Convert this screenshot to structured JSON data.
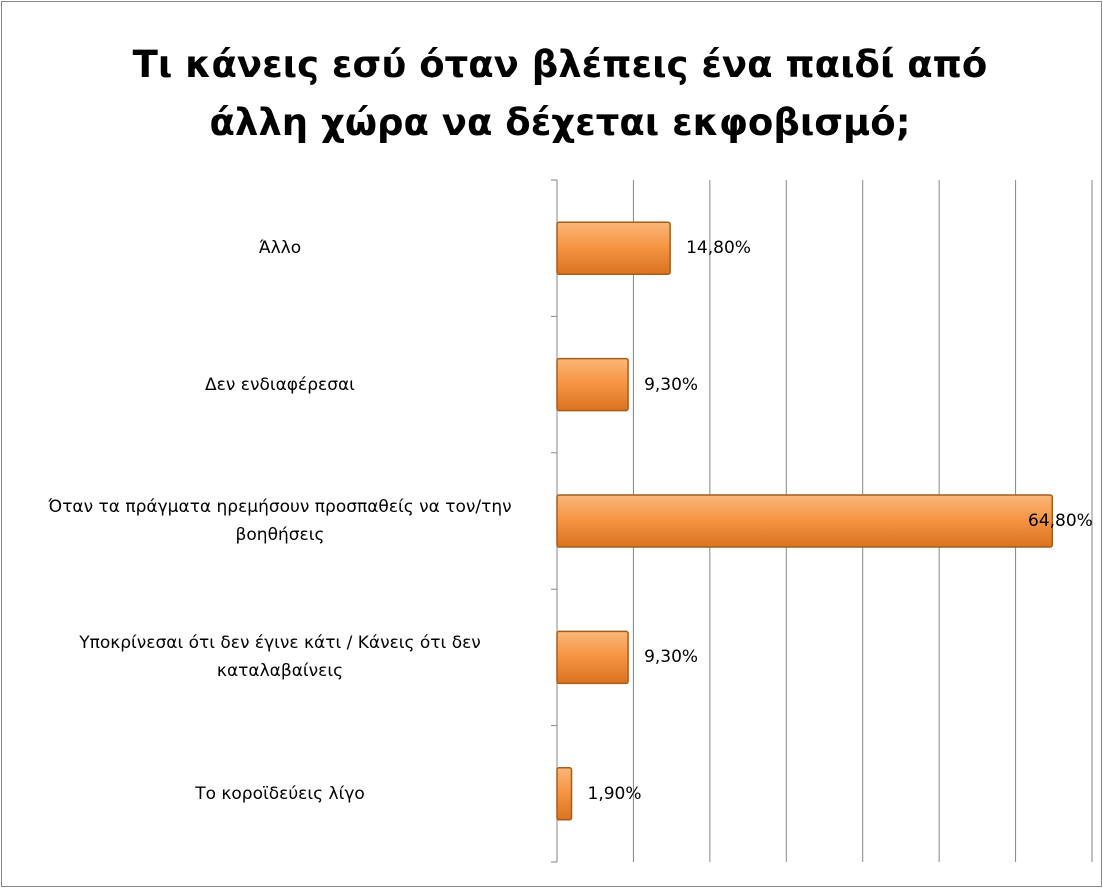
{
  "chart_data": {
    "type": "bar",
    "orientation": "horizontal",
    "title": "Τι κάνεις εσύ όταν βλέπεις ένα παιδί από άλλη χώρα να δέχεται εκφοβισμό;",
    "categories": [
      "Άλλο",
      "Δεν ενδιαφέρεσαι",
      "Όταν τα πράγματα ηρεμήσουν προσπαθείς να τον/την βοηθήσεις",
      "Υποκρίνεσαι ότι δεν έγινε κάτι / Κάνεις ότι δεν καταλαβαίνεις",
      "Το κοροϊδεύεις λίγο"
    ],
    "values": [
      14.8,
      9.3,
      64.8,
      9.3,
      1.9
    ],
    "value_labels": [
      "14,80%",
      "9,30%",
      "64,80%",
      "9,30%",
      "1,90%"
    ],
    "color": "#f79646",
    "xlim": [
      0,
      70
    ],
    "xticks": [
      0,
      10,
      20,
      30,
      40,
      50,
      60,
      70
    ],
    "grid": true
  }
}
